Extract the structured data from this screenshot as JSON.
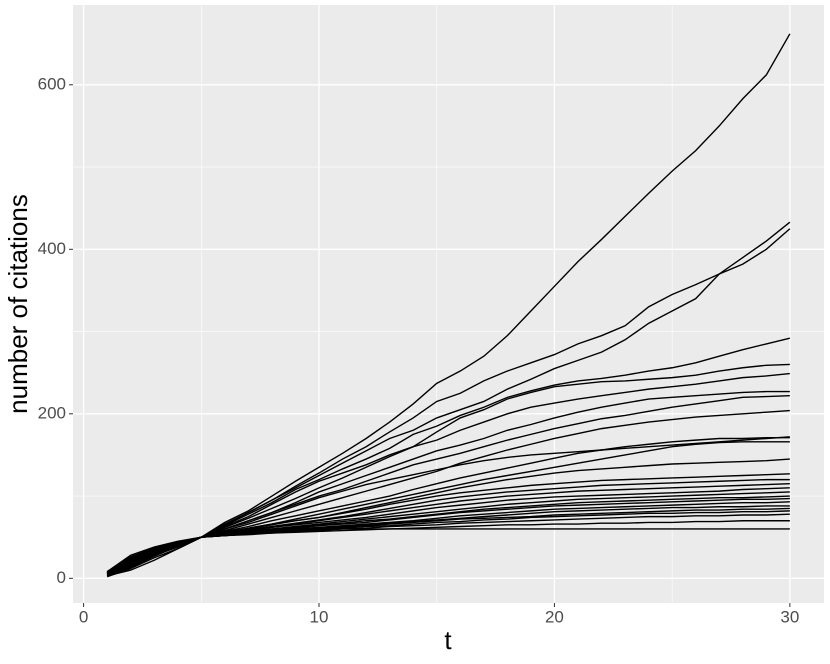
{
  "chart_data": {
    "type": "line",
    "x_label": "t",
    "y_label": "number of citations",
    "color": "#000000",
    "grid": true,
    "xlim": [
      -0.45,
      31.45
    ],
    "xticks": [
      0,
      10,
      20,
      30
    ],
    "ylim": [
      -30,
      697
    ],
    "yticks": [
      0,
      200,
      400,
      600
    ],
    "x": [
      1,
      2,
      3,
      4,
      5,
      6,
      7,
      8,
      9,
      10,
      11,
      12,
      13,
      14,
      15,
      16,
      17,
      18,
      19,
      20,
      21,
      22,
      23,
      24,
      25,
      26,
      27,
      28,
      29,
      30
    ],
    "series": [
      {
        "values": [
          5,
          20,
          30,
          40,
          50,
          68,
          82,
          100,
          118,
          135,
          152,
          170,
          190,
          212,
          237,
          252,
          270,
          295,
          325,
          355,
          385,
          412,
          440,
          468,
          495,
          520,
          550,
          583,
          612,
          662
        ]
      },
      {
        "values": [
          8,
          25,
          35,
          42,
          50,
          65,
          80,
          95,
          112,
          128,
          145,
          160,
          178,
          195,
          215,
          225,
          240,
          252,
          262,
          272,
          285,
          295,
          307,
          330,
          345,
          357,
          370,
          382,
          400,
          425
        ]
      },
      {
        "values": [
          3,
          18,
          30,
          40,
          50,
          66,
          80,
          95,
          110,
          125,
          140,
          155,
          170,
          180,
          195,
          205,
          215,
          230,
          242,
          255,
          265,
          275,
          290,
          310,
          325,
          340,
          370,
          390,
          410,
          433
        ]
      },
      {
        "values": [
          6,
          22,
          33,
          41,
          50,
          64,
          78,
          92,
          108,
          120,
          133,
          145,
          158,
          175,
          185,
          198,
          208,
          220,
          228,
          235,
          240,
          243,
          247,
          252,
          256,
          262,
          270,
          278,
          285,
          292
        ]
      },
      {
        "values": [
          5,
          20,
          32,
          42,
          50,
          63,
          75,
          90,
          105,
          118,
          128,
          138,
          150,
          160,
          178,
          195,
          205,
          218,
          226,
          233,
          236,
          239,
          240,
          242,
          244,
          247,
          252,
          256,
          259,
          260
        ]
      },
      {
        "values": [
          4,
          15,
          28,
          38,
          50,
          62,
          73,
          85,
          97,
          110,
          122,
          135,
          148,
          160,
          168,
          180,
          190,
          200,
          208,
          213,
          218,
          222,
          226,
          230,
          233,
          236,
          240,
          244,
          246,
          249
        ]
      },
      {
        "values": [
          7,
          24,
          34,
          43,
          50,
          60,
          70,
          80,
          92,
          105,
          115,
          125,
          135,
          145,
          155,
          162,
          170,
          180,
          187,
          195,
          202,
          208,
          213,
          218,
          220,
          222,
          224,
          226,
          227,
          227
        ]
      },
      {
        "values": [
          2,
          12,
          25,
          36,
          50,
          60,
          70,
          80,
          90,
          100,
          108,
          118,
          128,
          138,
          145,
          152,
          160,
          168,
          175,
          182,
          188,
          194,
          198,
          203,
          208,
          212,
          216,
          220,
          221,
          222
        ]
      },
      {
        "values": [
          6,
          20,
          30,
          40,
          50,
          58,
          66,
          74,
          82,
          90,
          98,
          106,
          114,
          122,
          130,
          140,
          148,
          156,
          163,
          170,
          176,
          182,
          186,
          190,
          193,
          196,
          198,
          200,
          202,
          204
        ]
      },
      {
        "values": [
          4,
          18,
          30,
          40,
          50,
          60,
          68,
          78,
          88,
          98,
          106,
          114,
          120,
          126,
          132,
          138,
          143,
          147,
          150,
          152,
          154,
          156,
          158,
          160,
          162,
          164,
          166,
          168,
          170,
          172
        ]
      },
      {
        "values": [
          5,
          14,
          27,
          39,
          50,
          57,
          63,
          70,
          76,
          82,
          88,
          94,
          100,
          108,
          115,
          122,
          128,
          134,
          140,
          146,
          152,
          156,
          160,
          163,
          166,
          168,
          170,
          170,
          171,
          171
        ]
      },
      {
        "values": [
          3,
          10,
          22,
          36,
          50,
          56,
          61,
          66,
          72,
          78,
          84,
          90,
          96,
          102,
          108,
          114,
          120,
          125,
          130,
          135,
          140,
          145,
          150,
          155,
          160,
          163,
          165,
          166,
          166,
          166
        ]
      },
      {
        "values": [
          8,
          28,
          38,
          45,
          50,
          56,
          61,
          66,
          70,
          74,
          80,
          86,
          92,
          98,
          104,
          110,
          115,
          120,
          124,
          128,
          131,
          133,
          135,
          137,
          139,
          140,
          141,
          142,
          143,
          145
        ]
      },
      {
        "values": [
          6,
          25,
          36,
          44,
          50,
          55,
          60,
          65,
          70,
          74,
          79,
          84,
          90,
          95,
          100,
          104,
          107,
          110,
          113,
          115,
          117,
          119,
          120,
          121,
          122,
          123,
          124,
          125,
          126,
          127
        ]
      },
      {
        "values": [
          4,
          20,
          32,
          42,
          50,
          55,
          59,
          63,
          67,
          71,
          75,
          80,
          85,
          90,
          95,
          99,
          102,
          105,
          107,
          109,
          111,
          113,
          114,
          115,
          116,
          117,
          118,
          119,
          120,
          120
        ]
      },
      {
        "values": [
          7,
          22,
          34,
          43,
          50,
          55,
          58,
          62,
          66,
          70,
          74,
          78,
          82,
          86,
          90,
          94,
          97,
          100,
          102,
          104,
          106,
          107,
          108,
          109,
          110,
          111,
          112,
          113,
          114,
          115
        ]
      },
      {
        "values": [
          5,
          18,
          31,
          42,
          50,
          54,
          58,
          62,
          65,
          68,
          71,
          74,
          78,
          82,
          86,
          89,
          92,
          95,
          97,
          99,
          100,
          101,
          102,
          103,
          104,
          105,
          106,
          108,
          109,
          110
        ]
      },
      {
        "values": [
          3,
          15,
          29,
          41,
          50,
          54,
          57,
          60,
          63,
          66,
          69,
          72,
          75,
          78,
          81,
          84,
          87,
          90,
          92,
          94,
          96,
          97,
          98,
          99,
          100,
          101,
          102,
          103,
          104,
          105
        ]
      },
      {
        "values": [
          6,
          21,
          33,
          42,
          50,
          54,
          57,
          60,
          62,
          65,
          67,
          70,
          72,
          75,
          78,
          81,
          84,
          86,
          88,
          90,
          92,
          93,
          94,
          95,
          96,
          97,
          98,
          98,
          99,
          100
        ]
      },
      {
        "values": [
          4,
          17,
          30,
          41,
          50,
          53,
          56,
          59,
          61,
          64,
          66,
          68,
          71,
          74,
          77,
          80,
          82,
          84,
          86,
          88,
          89,
          90,
          91,
          92,
          93,
          94,
          95,
          96,
          96,
          97
        ]
      },
      {
        "values": [
          8,
          26,
          37,
          44,
          50,
          53,
          56,
          58,
          60,
          62,
          64,
          66,
          68,
          70,
          73,
          76,
          78,
          80,
          82,
          84,
          85,
          86,
          87,
          88,
          89,
          90,
          91,
          92,
          92,
          93
        ]
      },
      {
        "values": [
          5,
          19,
          31,
          41,
          50,
          53,
          55,
          57,
          59,
          61,
          63,
          65,
          67,
          69,
          71,
          73,
          75,
          77,
          79,
          81,
          82,
          83,
          84,
          85,
          86,
          86,
          87,
          87,
          88,
          88
        ]
      },
      {
        "values": [
          3,
          13,
          27,
          39,
          50,
          52,
          54,
          56,
          58,
          60,
          62,
          64,
          66,
          68,
          70,
          72,
          73,
          74,
          75,
          77,
          78,
          79,
          80,
          81,
          82,
          83,
          83,
          84,
          84,
          85
        ]
      },
      {
        "values": [
          7,
          23,
          35,
          43,
          50,
          52,
          54,
          56,
          57,
          59,
          61,
          63,
          64,
          66,
          68,
          69,
          71,
          72,
          74,
          75,
          76,
          77,
          78,
          79,
          79,
          80,
          80,
          81,
          81,
          82
        ]
      },
      {
        "values": [
          5,
          20,
          32,
          42,
          50,
          52,
          54,
          55,
          57,
          58,
          60,
          61,
          63,
          64,
          65,
          67,
          68,
          69,
          70,
          71,
          72,
          73,
          74,
          75,
          75,
          76,
          76,
          77,
          77,
          78
        ]
      },
      {
        "values": [
          4,
          16,
          29,
          40,
          50,
          52,
          53,
          55,
          56,
          57,
          58,
          59,
          60,
          61,
          62,
          63,
          64,
          65,
          65,
          66,
          66,
          67,
          67,
          68,
          68,
          69,
          69,
          70,
          70,
          70
        ]
      },
      {
        "values": [
          6,
          22,
          33,
          42,
          50,
          52,
          54,
          56,
          58,
          59,
          60,
          60,
          60,
          60,
          60,
          60,
          60,
          60,
          60,
          60,
          60,
          60,
          60,
          60,
          60,
          60,
          60,
          60,
          60,
          60
        ]
      }
    ]
  }
}
